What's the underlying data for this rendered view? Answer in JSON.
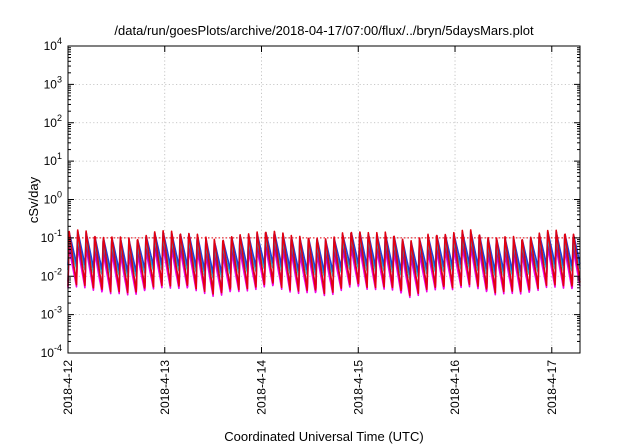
{
  "chart_data": {
    "type": "line",
    "title": "/data/run/goesPlots/archive/2018-04-17/07:00/flux/../bryn/5daysMars.plot",
    "xlabel": "Coordinated Universal Time (UTC)",
    "ylabel": "cSv/day",
    "yscale": "log",
    "ylim": [
      0.0001,
      10000
    ],
    "xlim": [
      "2018-04-12 00:00",
      "2018-04-17 07:00"
    ],
    "grid": true,
    "x_ticks": [
      "2018-4-12",
      "2018-4-13",
      "2018-4-14",
      "2018-4-15",
      "2018-4-16",
      "2018-4-17"
    ],
    "y_ticks": [
      {
        "value": 0.0001,
        "base": "10",
        "exp": "-4"
      },
      {
        "value": 0.001,
        "base": "10",
        "exp": "-3"
      },
      {
        "value": 0.01,
        "base": "10",
        "exp": "-2"
      },
      {
        "value": 0.1,
        "base": "10",
        "exp": "-1"
      },
      {
        "value": 1,
        "base": "10",
        "exp": "0"
      },
      {
        "value": 10,
        "base": "10",
        "exp": "1"
      },
      {
        "value": 100,
        "base": "10",
        "exp": "2"
      },
      {
        "value": 1000,
        "base": "10",
        "exp": "3"
      },
      {
        "value": 10000,
        "base": "10",
        "exp": "4"
      }
    ],
    "reference_line": {
      "value": 0.1,
      "color": "#e4000f"
    },
    "cycle_hours": 2.12,
    "series": [
      {
        "color": "#e4000f",
        "peak": 0.13,
        "trough": 0.0045
      },
      {
        "color": "#1f3fd8",
        "peak": 0.12,
        "trough": 0.016
      },
      {
        "color": "#27b0c4",
        "peak": 0.075,
        "trough": 0.012
      },
      {
        "color": "#7a1fa6",
        "peak": 0.06,
        "trough": 0.006
      },
      {
        "color": "#f000e6",
        "peak": 0.045,
        "trough": 0.004
      }
    ]
  }
}
